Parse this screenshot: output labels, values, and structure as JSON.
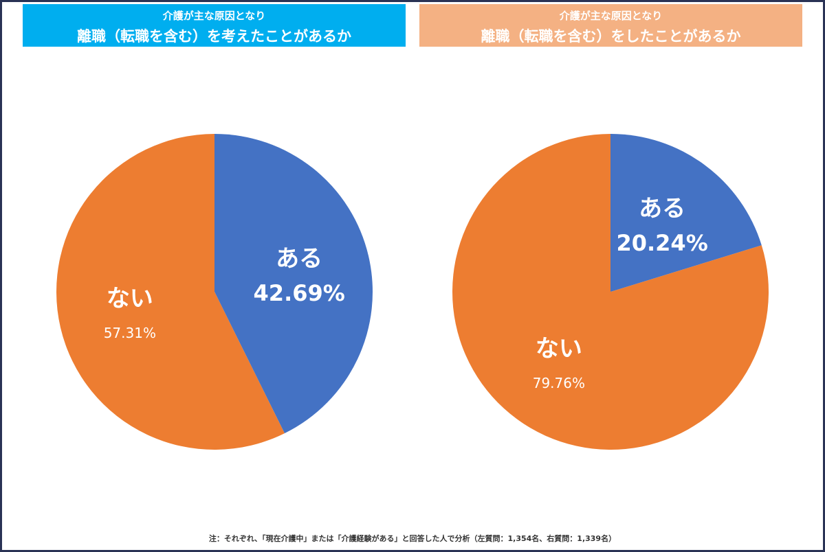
{
  "chart_data": [
    {
      "type": "pie",
      "title": [
        "介護が主な原因となり",
        "離職（転職を含む）を考えたことがあるか"
      ],
      "header_color": "#00aeef",
      "slices": [
        {
          "label": "ある",
          "value": 42.69,
          "value_label": "42.69%",
          "color": "#4472c4"
        },
        {
          "label": "ない",
          "value": 57.31,
          "value_label": "57.31%",
          "color": "#ed7d31"
        }
      ]
    },
    {
      "type": "pie",
      "title": [
        "介護が主な原因となり",
        "離職（転職を含む）をしたことがあるか"
      ],
      "header_color": "#f4b183",
      "slices": [
        {
          "label": "ある",
          "value": 20.24,
          "value_label": "20.24%",
          "color": "#4472c4"
        },
        {
          "label": "ない",
          "value": 79.76,
          "value_label": "79.76%",
          "color": "#ed7d31"
        }
      ]
    }
  ],
  "footnote": "注：それぞれ、「現在介護中」または「介護経験がある」と回答した人で分析（左質問：1,354名、右質問：1,339名）"
}
